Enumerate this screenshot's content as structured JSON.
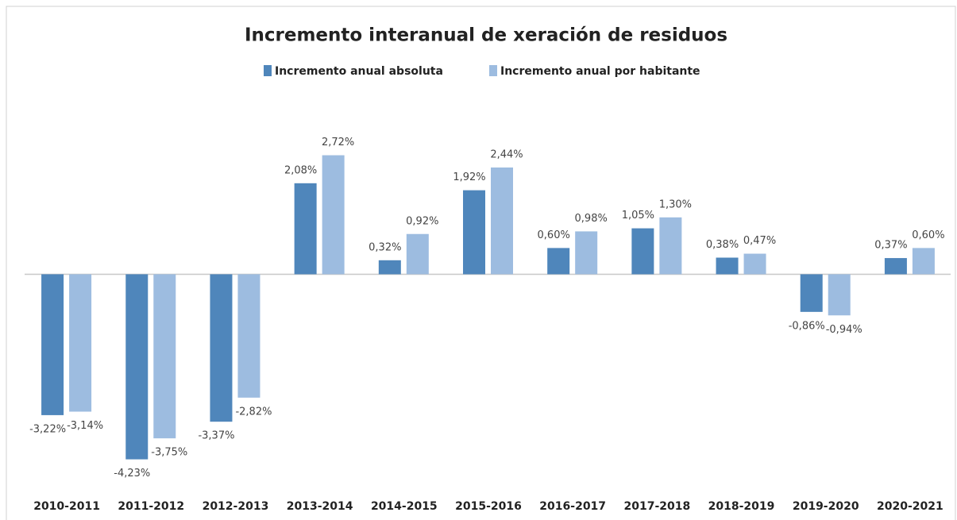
{
  "chart_data": {
    "type": "bar",
    "title": "Incremento interanual de xeración de residuos",
    "categories": [
      "2010-2011",
      "2011-2012",
      "2012-2013",
      "2013-2014",
      "2014-2015",
      "2015-2016",
      "2016-2017",
      "2017-2018",
      "2018-2019",
      "2019-2020",
      "2020-2021"
    ],
    "series": [
      {
        "name": "Incremento anual absoluta",
        "color": "#4f86bb",
        "values": [
          -3.22,
          -4.23,
          -3.37,
          2.08,
          0.32,
          1.92,
          0.6,
          1.05,
          0.38,
          -0.86,
          0.37
        ],
        "value_labels": [
          "-3,22%",
          "-4,23%",
          "-3,37%",
          "2,08%",
          "0,32%",
          "1,92%",
          "0,60%",
          "1,05%",
          "0,38%",
          "-0,86%",
          "0,37%"
        ]
      },
      {
        "name": "Incremento anual por habitante",
        "color": "#9dbce0",
        "values": [
          -3.14,
          -3.75,
          -2.82,
          2.72,
          0.92,
          2.44,
          0.98,
          1.3,
          0.47,
          -0.94,
          0.6
        ],
        "value_labels": [
          "-3,14%",
          "-3,75%",
          "-2,82%",
          "2,72%",
          "0,92%",
          "2,44%",
          "0,98%",
          "1,30%",
          "0,47%",
          "-0,94%",
          "0,60%"
        ]
      }
    ],
    "ylim": [
      -4.8,
      4.0
    ],
    "legend": "top"
  }
}
